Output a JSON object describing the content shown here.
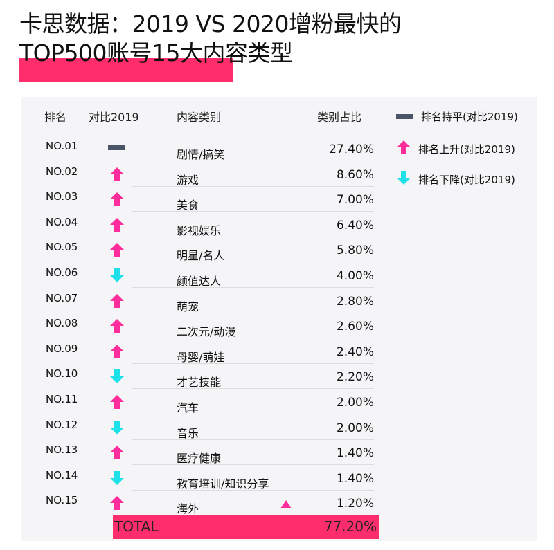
{
  "title": {
    "line1": "卡思数据：2019 VS 2020增粉最快的",
    "line2": "TOP500账号15大内容类型"
  },
  "colors": {
    "up": "#ff2d9b",
    "down": "#1ee0e8",
    "flat": "#4a5568",
    "highlight": "#ff2d6b"
  },
  "headers": {
    "rank": "排名",
    "compare": "对比2019",
    "category": "内容类别",
    "share": "类别占比"
  },
  "legend": [
    {
      "icon": "flat-bar-icon",
      "label": "排名持平(对比2019)"
    },
    {
      "icon": "arrow-up-icon",
      "label": "排名上升(对比2019)"
    },
    {
      "icon": "arrow-down-icon",
      "label": "排名下降(对比2019)"
    }
  ],
  "chart_data": {
    "type": "table",
    "columns": [
      "排名",
      "对比2019",
      "内容类别",
      "类别占比"
    ],
    "rows": [
      {
        "rank": "NO.01",
        "trend": "flat",
        "category": "剧情/搞笑",
        "share": "27.40%"
      },
      {
        "rank": "NO.02",
        "trend": "up",
        "category": "游戏",
        "share": "8.60%"
      },
      {
        "rank": "NO.03",
        "trend": "up",
        "category": "美食",
        "share": "7.00%"
      },
      {
        "rank": "NO.04",
        "trend": "up",
        "category": "影视娱乐",
        "share": "6.40%"
      },
      {
        "rank": "NO.05",
        "trend": "up",
        "category": "明星/名人",
        "share": "5.80%"
      },
      {
        "rank": "NO.06",
        "trend": "down",
        "category": "颜值达人",
        "share": "4.00%"
      },
      {
        "rank": "NO.07",
        "trend": "up",
        "category": "萌宠",
        "share": "2.80%"
      },
      {
        "rank": "NO.08",
        "trend": "up",
        "category": "二次元/动漫",
        "share": "2.60%"
      },
      {
        "rank": "NO.09",
        "trend": "up",
        "category": "母婴/萌娃",
        "share": "2.40%"
      },
      {
        "rank": "NO.10",
        "trend": "down",
        "category": "才艺技能",
        "share": "2.20%"
      },
      {
        "rank": "NO.11",
        "trend": "up",
        "category": "汽车",
        "share": "2.00%"
      },
      {
        "rank": "NO.12",
        "trend": "down",
        "category": "音乐",
        "share": "2.00%"
      },
      {
        "rank": "NO.13",
        "trend": "up",
        "category": "医疗健康",
        "share": "1.40%"
      },
      {
        "rank": "NO.14",
        "trend": "down",
        "category": "教育培训/知识分享",
        "share": "1.40%"
      },
      {
        "rank": "NO.15",
        "trend": "up",
        "category": "海外",
        "share": "1.20%"
      }
    ],
    "total": {
      "label": "TOTAL",
      "share": "77.20%"
    }
  }
}
